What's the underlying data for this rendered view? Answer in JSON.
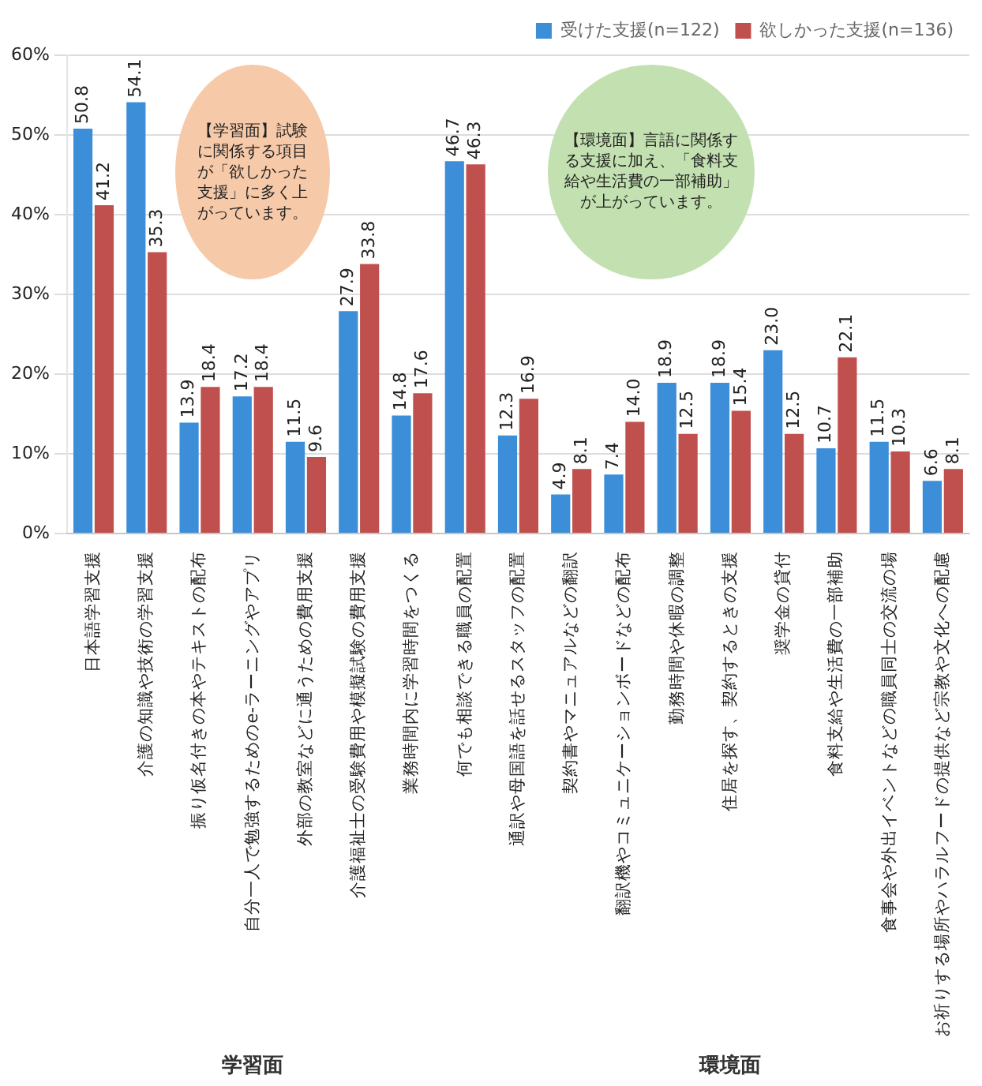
{
  "chart_data": {
    "type": "bar",
    "categories": [
      "日本語学習支援",
      "介護の知識や技術の学習支援",
      "振り仮名付きの本やテキストの配布",
      "自分一人で勉強するためのe-ラーニングやアプリ",
      "外部の教室などに通うための費用支援",
      "介護福祉士の受験費用や模擬試験の費用支援",
      "業務時間内に学習時間をつくる",
      "何でも相談できる職員の配置",
      "通訳や母国語を話せるスタッフの配置",
      "契約書やマニュアルなどの翻訳",
      "翻訳機やコミュニケーションボードなどの配布",
      "勤務時間や休暇の調整",
      "住居を探す、契約するときの支援",
      "奨学金の貸付",
      "食料支給や生活費の一部補助",
      "食事会や外出イベントなどの職員同士の交流の場",
      "お祈りする場所やハラルフードの提供など宗教や文化への配慮"
    ],
    "series": [
      {
        "name": "受けた支援(n=122)",
        "color": "#3c8ed8",
        "values": [
          50.8,
          54.1,
          13.9,
          17.2,
          11.5,
          27.9,
          14.8,
          46.7,
          12.3,
          4.9,
          7.4,
          18.9,
          18.9,
          23.0,
          10.7,
          11.5,
          6.6
        ],
        "value_labels": [
          "50.8",
          "54.1",
          "13.9",
          "17.2",
          "11.5",
          "27.9",
          "14.8",
          "46.7",
          "12.3",
          "4.9",
          "7.4",
          "18.9",
          "18.9",
          "23.0",
          "10.7",
          "11.5",
          "6.6"
        ]
      },
      {
        "name": "欲しかった支援(n=136)",
        "color": "#c0504d",
        "values": [
          41.2,
          35.3,
          18.4,
          18.4,
          9.6,
          33.8,
          17.6,
          46.3,
          16.9,
          8.1,
          14.0,
          12.5,
          15.4,
          12.5,
          22.1,
          10.3,
          8.1
        ],
        "value_labels": [
          "41.2",
          "35.3",
          "18.4",
          "18.4",
          "9.6",
          "33.8",
          "17.6",
          "46.3",
          "16.9",
          "8.1",
          "14.0",
          "12.5",
          "15.4",
          "12.5",
          "22.1",
          "10.3",
          "8.1"
        ]
      }
    ],
    "ylim": [
      0,
      60
    ],
    "yticks": [
      {
        "value": 0,
        "label": "0%"
      },
      {
        "value": 10,
        "label": "10%"
      },
      {
        "value": 20,
        "label": "20%"
      },
      {
        "value": 30,
        "label": "30%"
      },
      {
        "value": 40,
        "label": "40%"
      },
      {
        "value": 50,
        "label": "50%"
      },
      {
        "value": 60,
        "label": "60%"
      }
    ],
    "grid": "y",
    "legend": "top right",
    "annotations": [
      "【学習面】試験に関係する項目が「欲しかった支援」に多く上がっています。",
      "【環境面】言語に関係する支援に加え、「食料支給や生活費の一部補助」が上がっています。",
      "学習面",
      "環境面"
    ]
  }
}
